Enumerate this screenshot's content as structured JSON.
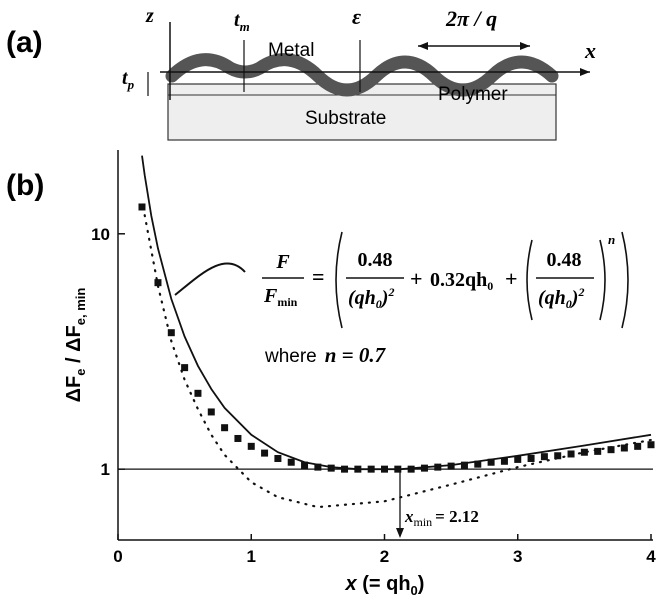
{
  "schematic": {
    "panel_label": "(a)",
    "z_axis": "z",
    "x_axis": "x",
    "t_m": "t",
    "t_m_sub": "m",
    "epsilon": "ε",
    "period": "2π / q",
    "metal": "Metal",
    "t_p": "t",
    "t_p_sub": "p",
    "polymer": "Polymer",
    "substrate": "Substrate"
  },
  "chart_data": {
    "type": "line",
    "panel_label": "(b)",
    "log_y": true,
    "xlabel": {
      "var": "x",
      "text": " (= qh",
      "sub": "0",
      "close": ")"
    },
    "ylabel": {
      "a": "ΔF",
      "a_sub": "e",
      "b": " / ΔF",
      "b_sub": "e, min"
    },
    "xlim": [
      0,
      4
    ],
    "ylim": [
      0.5,
      22.7
    ],
    "xticks": [
      0,
      1,
      2,
      3,
      4
    ],
    "yticks": [
      1,
      10
    ],
    "hline": 1,
    "formula": {
      "lhs_num": "F",
      "lhs_den": "F",
      "lhs_den_sub": "min",
      "equals": "=",
      "num": "0.48",
      "den_open": "(qh",
      "den_sub": "0",
      "den_close": ")",
      "den_sup": "2",
      "plus": "+",
      "mid": "0.32qh",
      "mid_sub": "0",
      "exponent": "n"
    },
    "where": {
      "word": "where",
      "expr": "n = 0.7"
    },
    "x_min": {
      "var": "x",
      "sub": "min",
      "text": "= 2.12"
    },
    "series": [
      {
        "style": "solid",
        "color": "#111111",
        "x": [
          0.18,
          0.2,
          0.25,
          0.3,
          0.4,
          0.5,
          0.6,
          0.7,
          0.8,
          1.0,
          1.2,
          1.4,
          1.6,
          1.8,
          2.0,
          2.12,
          2.5,
          3.0,
          3.5,
          4.0
        ],
        "values": [
          21.5,
          17.75,
          11.93,
          8.66,
          5.29,
          3.66,
          2.75,
          2.19,
          1.82,
          1.4,
          1.18,
          1.07,
          1.02,
          1.0,
          1.0,
          1.0,
          1.04,
          1.14,
          1.26,
          1.4
        ]
      },
      {
        "style": "dotted",
        "color": "#111111",
        "x": [
          0.2,
          0.3,
          0.4,
          0.5,
          0.6,
          0.7,
          0.8,
          1.0,
          1.2,
          1.5,
          2.0,
          2.5,
          3.0,
          3.5,
          4.0
        ],
        "values": [
          12,
          6,
          3.5,
          2.4,
          1.8,
          1.4,
          1.15,
          0.88,
          0.76,
          0.69,
          0.73,
          0.86,
          1.02,
          1.18,
          1.33
        ]
      },
      {
        "style": "markers",
        "color": "#111111",
        "x": [
          0.18,
          0.3,
          0.4,
          0.5,
          0.6,
          0.7,
          0.8,
          0.9,
          1.0,
          1.1,
          1.2,
          1.3,
          1.4,
          1.5,
          1.6,
          1.7,
          1.8,
          1.9,
          2.0,
          2.1,
          2.2,
          2.3,
          2.4,
          2.5,
          2.6,
          2.7,
          2.8,
          2.9,
          3.0,
          3.1,
          3.2,
          3.3,
          3.4,
          3.5,
          3.6,
          3.7,
          3.8,
          3.9,
          4.0
        ],
        "values": [
          13,
          6.2,
          3.8,
          2.7,
          2.1,
          1.75,
          1.5,
          1.35,
          1.25,
          1.17,
          1.11,
          1.07,
          1.04,
          1.02,
          1.01,
          1.0,
          1.0,
          1.0,
          1.0,
          1.0,
          1.0,
          1.01,
          1.02,
          1.03,
          1.04,
          1.05,
          1.07,
          1.08,
          1.1,
          1.11,
          1.13,
          1.14,
          1.16,
          1.18,
          1.19,
          1.21,
          1.23,
          1.25,
          1.27
        ]
      }
    ]
  }
}
